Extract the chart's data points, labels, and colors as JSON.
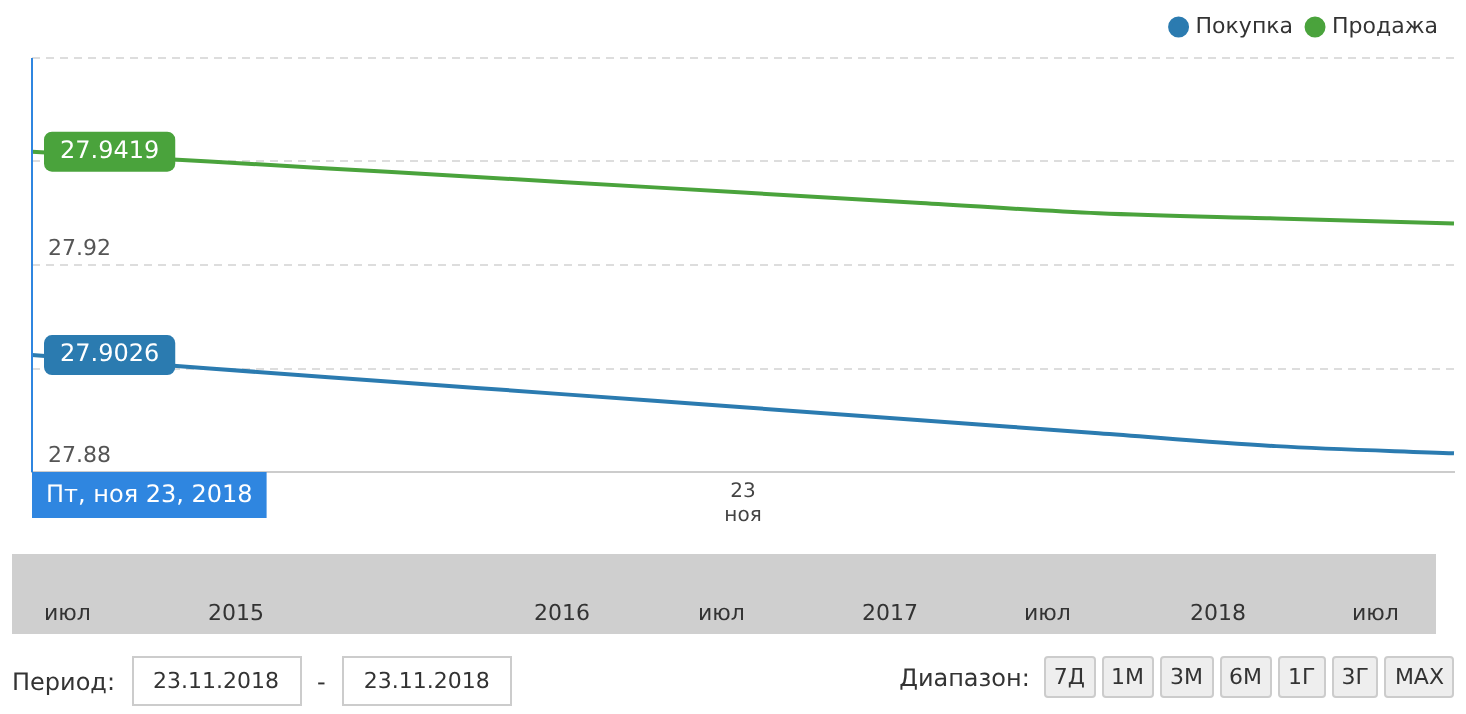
{
  "chart_data": {
    "type": "line",
    "categories": [
      null,
      null,
      null,
      null,
      "23 ноя",
      null,
      null,
      null,
      null
    ],
    "series": [
      {
        "name": "Покупка",
        "color": "#2b7bb0",
        "values": [
          27.9026,
          27.9,
          27.8975,
          27.895,
          27.8925,
          27.89,
          27.8875,
          27.885,
          27.8836
        ],
        "value_labels": [
          "27.9026",
          null,
          null,
          null,
          null,
          null,
          null,
          null,
          null
        ]
      },
      {
        "name": "Продажа",
        "color": "#4aa33c",
        "values": [
          27.9419,
          27.94,
          27.938,
          27.936,
          27.934,
          27.932,
          27.93,
          27.929,
          27.928
        ],
        "value_labels": [
          "27.9419",
          null,
          null,
          null,
          null,
          null,
          null,
          null,
          null
        ]
      }
    ],
    "ylim": [
      27.88,
      27.96
    ],
    "yticks": [
      27.88,
      {
        "value": 27.9,
        "label": null
      },
      27.92,
      {
        "value": 27.94,
        "label": null
      },
      {
        "value": 27.96,
        "label": null
      }
    ],
    "grid": "y",
    "legend": "top right",
    "marker": "none",
    "annotations": [
      "Пт, ноя 23, 2018",
      "июл",
      "2015",
      "2016",
      "июл",
      "2017",
      "июл",
      "2018",
      "июл",
      "Период:",
      "23.11.2018",
      "-",
      "23.11.2018",
      "Диапазон:",
      "7Д",
      "1М",
      "3М",
      "6М",
      "1Г",
      "3Г",
      "MAX"
    ]
  }
}
